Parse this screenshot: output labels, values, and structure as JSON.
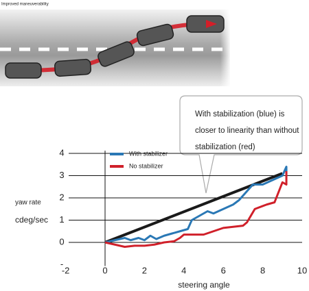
{
  "caption": "Improved maneuverability",
  "chart_data": {
    "type": "line",
    "y_label_lines": [
      "yaw rate",
      "cdeg/sec"
    ],
    "x_label": "steering angle",
    "annotation_lines": [
      "With stabilization (blue) is",
      "closer to linearity than without",
      "stabilization (red)"
    ],
    "xlim": [
      -2,
      10
    ],
    "xticks": [
      -2,
      0,
      2,
      4,
      6,
      8,
      10
    ],
    "ylim": [
      -1,
      4
    ],
    "yticks": [
      {
        "value": -1,
        "label": "-"
      },
      0,
      1,
      2,
      3,
      4
    ],
    "grid": true,
    "series": [
      {
        "color": "#1a1a1a",
        "x": [
          0,
          9
        ],
        "values": [
          0,
          3.1
        ]
      },
      {
        "name": "With stabilizer",
        "color": "#2a78b5",
        "x": [
          0,
          0.5,
          1,
          1.3,
          1.7,
          2,
          2.3,
          2.6,
          3,
          3.4,
          3.8,
          4.2,
          4.4,
          4.8,
          5.2,
          5.5,
          6,
          6.5,
          6.8,
          7,
          7.5,
          8,
          8.5,
          9,
          9.2,
          9.2
        ],
        "values": [
          0,
          0.1,
          0.2,
          0.1,
          0.2,
          0.1,
          0.3,
          0.15,
          0.3,
          0.4,
          0.5,
          0.6,
          1.0,
          1.2,
          1.4,
          1.3,
          1.5,
          1.7,
          1.9,
          2.1,
          2.6,
          2.6,
          2.8,
          3.0,
          3.4,
          3.0
        ]
      },
      {
        "name": "No stabilizer",
        "color": "#d0202a",
        "x": [
          0,
          0.5,
          1,
          1.5,
          2,
          2.5,
          3,
          3.5,
          3.8,
          4,
          5,
          5.5,
          6,
          7,
          7.2,
          7.6,
          8.2,
          8.6,
          9,
          9.2,
          9.2
        ],
        "values": [
          0,
          -0.1,
          -0.2,
          -0.15,
          -0.15,
          -0.1,
          0,
          0.05,
          0.2,
          0.35,
          0.35,
          0.5,
          0.65,
          0.75,
          0.9,
          1.5,
          1.7,
          1.8,
          2.7,
          2.6,
          3.2
        ]
      }
    ]
  }
}
